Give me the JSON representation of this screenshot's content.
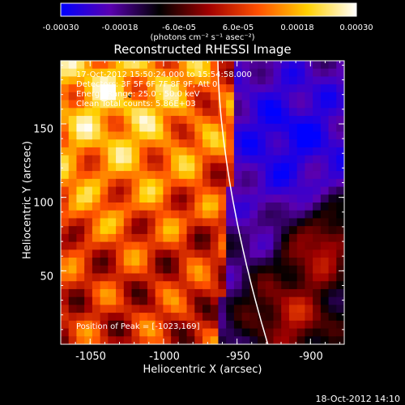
{
  "colorbar": {
    "ticks": [
      "-0.00030",
      "-0.00018",
      "-6.0e-05",
      "6.0e-05",
      "0.00018",
      "0.00030"
    ],
    "unit": "(photons cm⁻² s⁻¹ asec⁻²)",
    "stops": [
      "#0000ff",
      "#5a00b0",
      "#000000",
      "#a00000",
      "#ff5000",
      "#ffd000",
      "#ffffff"
    ]
  },
  "title": "Reconstructed RHESSI Image",
  "info": {
    "time": "17-Oct-2012 15:50:24.000 to 15:54:58.000",
    "detectors": "Detectors: 3F 5F 6F 7F 8F 9F, Att 0",
    "energy": "Energy Range: 25.0 - 50.0 keV",
    "clean": "Clean    Total counts: 5.86E+03"
  },
  "peak_label": "Position of Peak = [-1023,169]",
  "date_stamp": "18-Oct-2012 14:10",
  "chart_data": {
    "type": "heatmap",
    "title": "Reconstructed RHESSI Image",
    "xlabel": "Heliocentric X (arcsec)",
    "ylabel": "Heliocentric Y (arcsec)",
    "xlim": [
      -1070,
      -877
    ],
    "ylim": [
      0,
      193
    ],
    "x_ticks": [
      -1050,
      -1000,
      -950,
      -900
    ],
    "y_ticks": [
      50,
      100,
      150
    ],
    "colorbar_range": [
      -0.0003,
      0.0003
    ],
    "limb_color": "#ffffff",
    "peak": {
      "x": -1023,
      "y": 169
    }
  }
}
